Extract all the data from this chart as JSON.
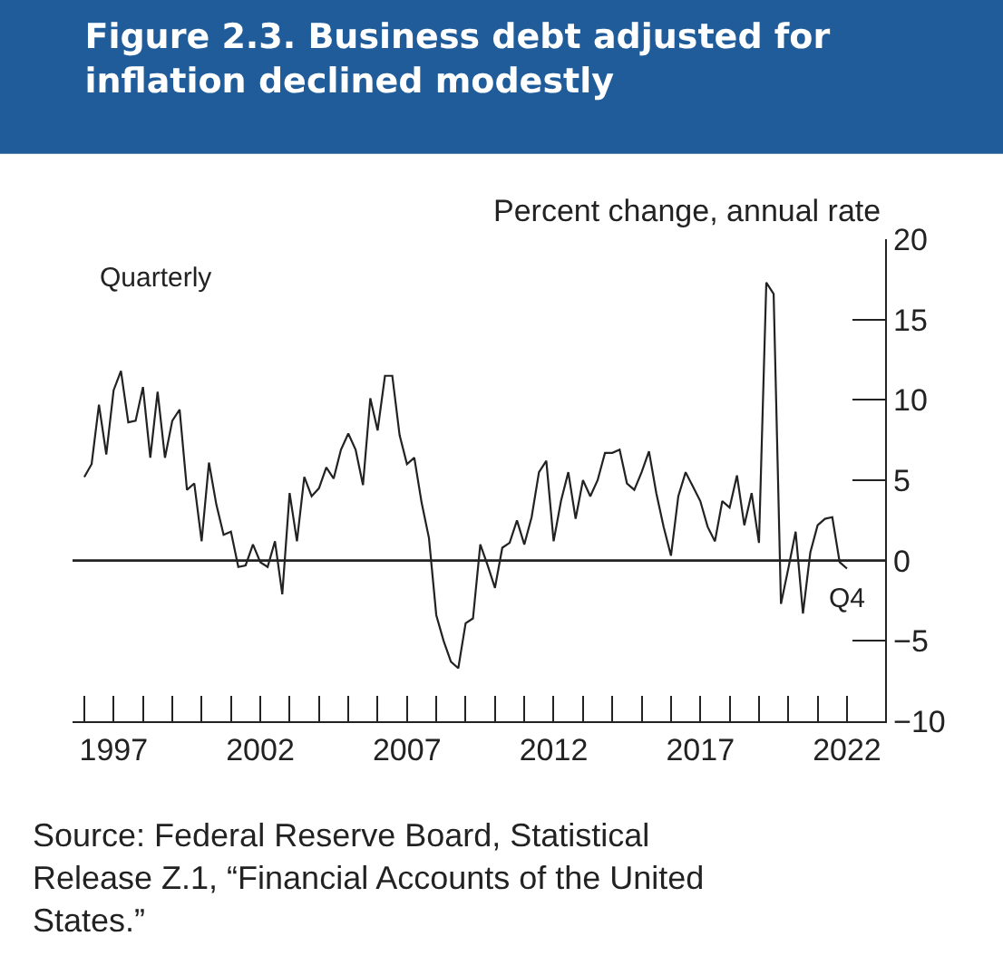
{
  "chart_data": {
    "type": "line",
    "title": "Figure 2.3. Business debt adjusted for inflation declined modestly",
    "ylabel": "Percent change, annual rate",
    "series": [
      {
        "color": "#222222",
        "x": [
          1996.0,
          1996.25,
          1996.5,
          1996.75,
          1997.0,
          1997.25,
          1997.5,
          1997.75,
          1998.0,
          1998.25,
          1998.5,
          1998.75,
          1999.0,
          1999.25,
          1999.5,
          1999.75,
          2000.0,
          2000.25,
          2000.5,
          2000.75,
          2001.0,
          2001.25,
          2001.5,
          2001.75,
          2002.0,
          2002.25,
          2002.5,
          2002.75,
          2003.0,
          2003.25,
          2003.5,
          2003.75,
          2004.0,
          2004.25,
          2004.5,
          2004.75,
          2005.0,
          2005.25,
          2005.5,
          2005.75,
          2006.0,
          2006.25,
          2006.5,
          2006.75,
          2007.0,
          2007.25,
          2007.5,
          2007.75,
          2008.0,
          2008.25,
          2008.5,
          2008.75,
          2009.0,
          2009.25,
          2009.5,
          2009.75,
          2010.0,
          2010.25,
          2010.5,
          2010.75,
          2011.0,
          2011.25,
          2011.5,
          2011.75,
          2012.0,
          2012.25,
          2012.5,
          2012.75,
          2013.0,
          2013.25,
          2013.5,
          2013.75,
          2014.0,
          2014.25,
          2014.5,
          2014.75,
          2015.0,
          2015.25,
          2015.5,
          2015.75,
          2016.0,
          2016.25,
          2016.5,
          2016.75,
          2017.0,
          2017.25,
          2017.5,
          2017.75,
          2018.0,
          2018.25,
          2018.5,
          2018.75,
          2019.0,
          2019.25,
          2019.5,
          2019.75,
          2020.0,
          2020.25,
          2020.5,
          2020.75,
          2021.0,
          2021.25,
          2021.5,
          2021.75,
          2022.0
        ],
        "values": [
          5.2,
          6.0,
          9.7,
          6.6,
          10.6,
          11.8,
          8.6,
          8.7,
          10.8,
          6.4,
          10.5,
          6.4,
          8.7,
          9.4,
          4.4,
          4.8,
          1.2,
          6.1,
          3.5,
          1.6,
          1.8,
          -0.4,
          -0.3,
          1.0,
          -0.1,
          -0.4,
          1.2,
          -2.1,
          4.2,
          1.2,
          5.2,
          4.0,
          4.5,
          5.8,
          5.1,
          6.9,
          7.9,
          6.9,
          4.7,
          10.1,
          8.1,
          11.5,
          11.5,
          7.8,
          6.0,
          6.4,
          3.6,
          1.4,
          -3.4,
          -5.0,
          -6.3,
          -6.7,
          -3.9,
          -3.6,
          1.0,
          -0.3,
          -1.7,
          0.8,
          1.1,
          2.5,
          1.0,
          2.7,
          5.5,
          6.2,
          1.2,
          3.7,
          5.5,
          2.6,
          5.0,
          4.0,
          5.0,
          6.7,
          6.7,
          6.9,
          4.8,
          4.4,
          5.5,
          6.8,
          4.2,
          2.1,
          0.3,
          4.0,
          5.5,
          4.6,
          3.7,
          2.1,
          1.2,
          3.7,
          3.3,
          5.3,
          2.2,
          4.2,
          1.1,
          17.3,
          16.6,
          -2.7,
          -0.5,
          1.8,
          -3.3,
          0.5,
          2.2,
          2.6,
          2.7,
          -0.1,
          -0.5
        ]
      }
    ],
    "xlim": [
      1995.6,
      2023.3
    ],
    "xticks": [
      {
        "value": 1996,
        "label": null
      },
      1997,
      {
        "value": 1998,
        "label": null
      },
      {
        "value": 1999,
        "label": null
      },
      {
        "value": 2000,
        "label": null
      },
      {
        "value": 2001,
        "label": null
      },
      2002,
      {
        "value": 2003,
        "label": null
      },
      {
        "value": 2004,
        "label": null
      },
      {
        "value": 2005,
        "label": null
      },
      {
        "value": 2006,
        "label": null
      },
      2007,
      {
        "value": 2008,
        "label": null
      },
      {
        "value": 2009,
        "label": null
      },
      {
        "value": 2010,
        "label": null
      },
      {
        "value": 2011,
        "label": null
      },
      2012,
      {
        "value": 2013,
        "label": null
      },
      {
        "value": 2014,
        "label": null
      },
      {
        "value": 2015,
        "label": null
      },
      {
        "value": 2016,
        "label": null
      },
      2017,
      {
        "value": 2018,
        "label": null
      },
      {
        "value": 2019,
        "label": null
      },
      {
        "value": 2020,
        "label": null
      },
      {
        "value": 2021,
        "label": null
      },
      2022
    ],
    "ylim": [
      -10,
      20
    ],
    "yticks": [
      {
        "value": -10,
        "label": "−10"
      },
      {
        "value": -5,
        "label": "−5"
      },
      0,
      5,
      10,
      15,
      20
    ],
    "ref_lines": [
      {
        "axis": "y",
        "value": 0,
        "color": "#222222"
      }
    ],
    "annotations": [
      "Quarterly",
      "Q4",
      "Source: Federal Reserve Board, Statistical Release Z.1, “Financial Accounts of the United States.”"
    ],
    "marker": "none",
    "line_style": "solid"
  }
}
